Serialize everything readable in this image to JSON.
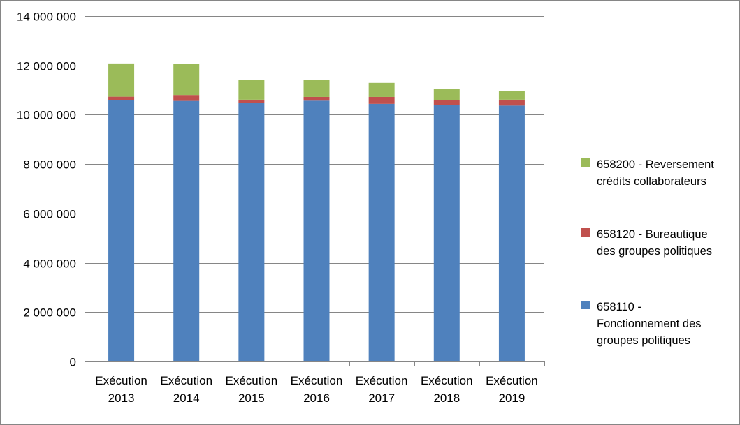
{
  "chart_data": {
    "type": "bar",
    "stacked": true,
    "categories": [
      [
        "Exécution",
        "2013"
      ],
      [
        "Exécution",
        "2014"
      ],
      [
        "Exécution",
        "2015"
      ],
      [
        "Exécution",
        "2016"
      ],
      [
        "Exécution",
        "2017"
      ],
      [
        "Exécution",
        "2018"
      ],
      [
        "Exécution",
        "2019"
      ]
    ],
    "series": [
      {
        "name": "658110 - Fonctionnement des groupes politiques",
        "legend_lines": [
          "658110 -",
          "Fonctionnement des",
          "groupes politiques"
        ],
        "color": "#4F81BD",
        "values": [
          10600000,
          10560000,
          10480000,
          10570000,
          10440000,
          10400000,
          10370000
        ]
      },
      {
        "name": "658120 - Bureautique des groupes politiques",
        "legend_lines": [
          "658120 - Bureautique",
          "des groupes politiques"
        ],
        "color": "#C0504D",
        "values": [
          130000,
          240000,
          130000,
          150000,
          280000,
          180000,
          240000
        ]
      },
      {
        "name": "658200 - Reversement crédits collaborateurs",
        "legend_lines": [
          "658200 - Reversement",
          "crédits collaborateurs"
        ],
        "color": "#9BBB59",
        "values": [
          1350000,
          1270000,
          810000,
          700000,
          570000,
          450000,
          360000
        ]
      }
    ],
    "ylim": [
      0,
      14000000
    ],
    "yticks": [
      0,
      2000000,
      4000000,
      6000000,
      8000000,
      10000000,
      12000000,
      14000000
    ],
    "ytick_labels": [
      "0",
      "2 000 000",
      "4 000 000",
      "6 000 000",
      "8 000 000",
      "10 000 000",
      "12 000 000",
      "14 000 000"
    ],
    "grid": true,
    "gridline_color": "#868686",
    "legend_position": "right",
    "title": "",
    "xlabel": "",
    "ylabel": ""
  }
}
